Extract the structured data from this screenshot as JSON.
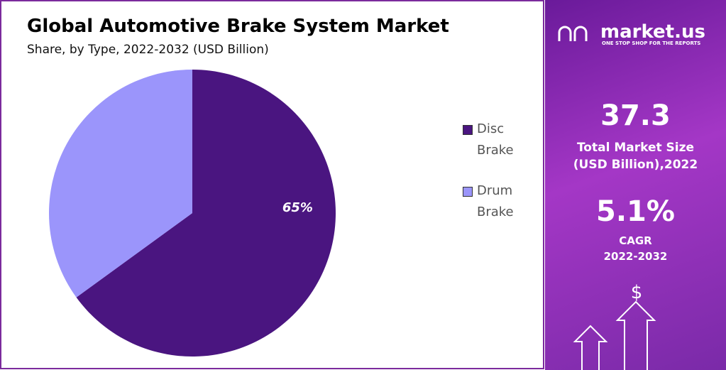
{
  "chart_data": {
    "type": "pie",
    "title": "Global Automotive Brake System Market",
    "subtitle": "Share, by Type, 2022-2032 (USD Billion)",
    "categories": [
      "Disc Brake",
      "Drum Brake"
    ],
    "values": [
      65,
      35
    ],
    "value_labels": [
      "65%",
      null
    ],
    "colors": [
      "#4a1580",
      "#9b95fb"
    ],
    "legend": "right"
  },
  "panel": {
    "logo": "market.us",
    "tagline": "ONE STOP SHOP FOR THE REPORTS",
    "market_size": "37.3",
    "market_size_label": "Total Market Size",
    "market_size_unit": "(USD Billion),2022",
    "cagr": "5.1%",
    "cagr_label": "CAGR",
    "cagr_period": "2022-2032"
  }
}
